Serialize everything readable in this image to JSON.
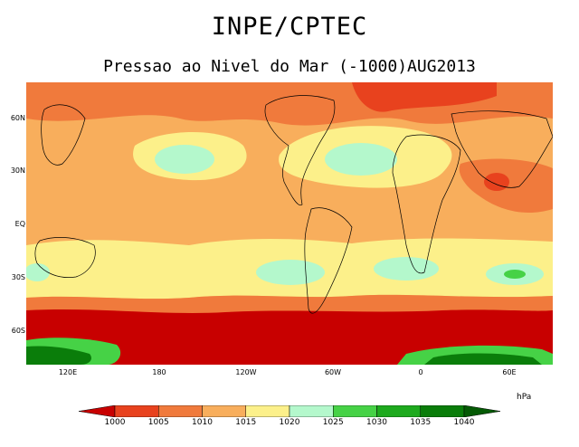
{
  "header": {
    "title": "INPE/CPTEC",
    "subtitle": "Pressao ao Nivel do Mar (-1000)AUG2013"
  },
  "map": {
    "lat_labels": [
      "60N",
      "30N",
      "EQ",
      "30S",
      "60S"
    ],
    "lon_labels": [
      "120E",
      "180",
      "120W",
      "60W",
      "0",
      "60E"
    ]
  },
  "legend": {
    "unit": "hPa",
    "levels": [
      "1000",
      "1005",
      "1010",
      "1015",
      "1020",
      "1025",
      "1030",
      "1035",
      "1040"
    ],
    "colors": [
      "#c80000",
      "#e8421e",
      "#f07a3c",
      "#f8ae5c",
      "#fcf08a",
      "#b4f8cc",
      "#46d246",
      "#1eaa1e",
      "#0a7d0a",
      "#055a05"
    ]
  }
}
